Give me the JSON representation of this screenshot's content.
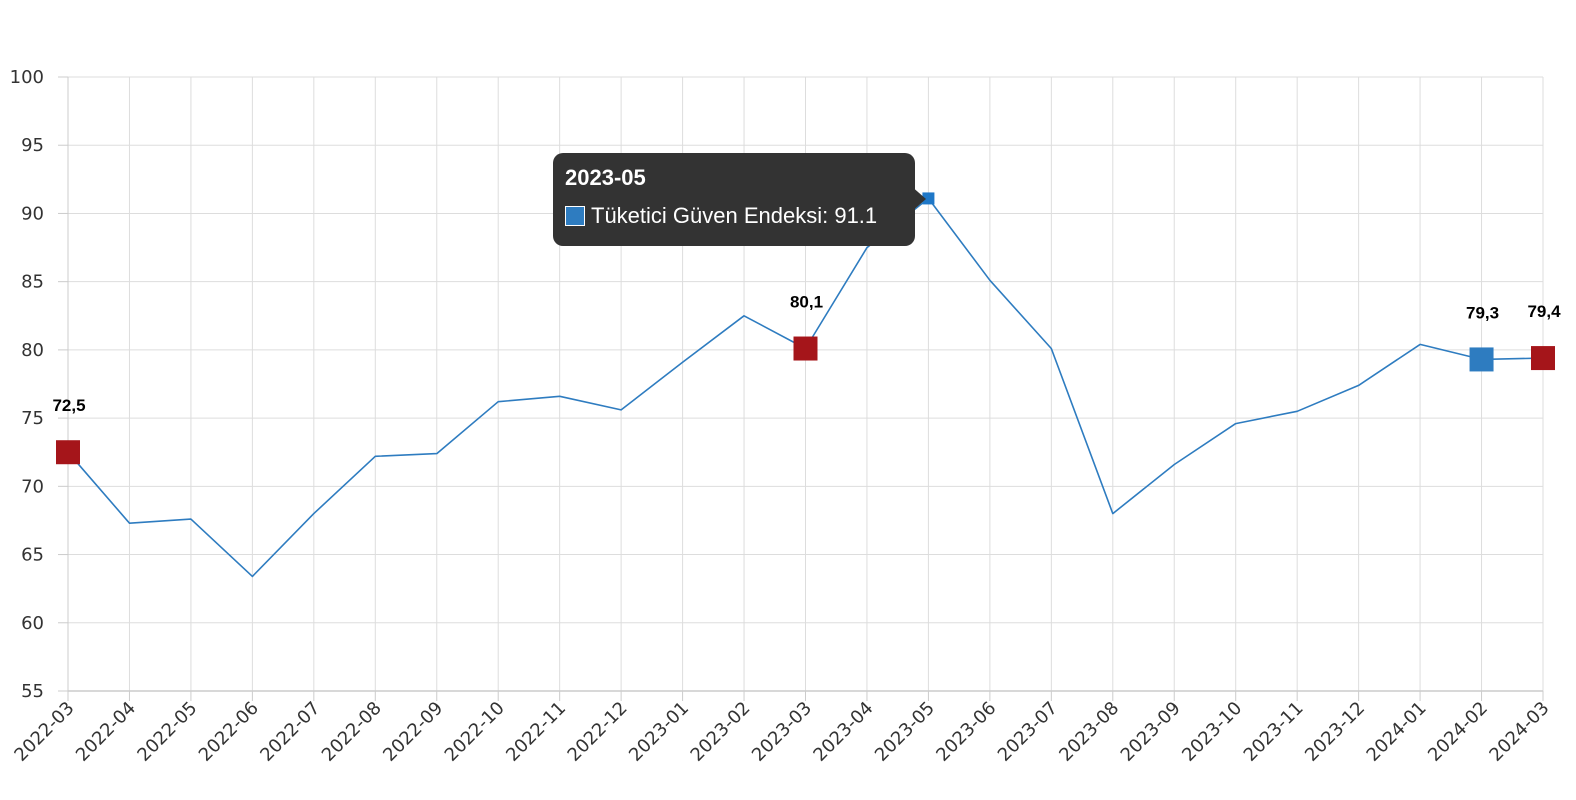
{
  "chart_data": {
    "type": "line",
    "title": "",
    "xlabel": "",
    "ylabel": "",
    "ylim": [
      55,
      100
    ],
    "yticks": [
      55,
      60,
      65,
      70,
      75,
      80,
      85,
      90,
      95,
      100
    ],
    "grid": true,
    "categories": [
      "2022-03",
      "2022-04",
      "2022-05",
      "2022-06",
      "2022-07",
      "2022-08",
      "2022-09",
      "2022-10",
      "2022-11",
      "2022-12",
      "2023-01",
      "2023-02",
      "2023-03",
      "2023-04",
      "2023-05",
      "2023-06",
      "2023-07",
      "2023-08",
      "2023-09",
      "2023-10",
      "2023-11",
      "2023-12",
      "2024-01",
      "2024-02",
      "2024-03"
    ],
    "series": [
      {
        "name": "Tüketici Güven Endeksi",
        "color": "#2e7cc0",
        "values": [
          72.5,
          67.3,
          67.6,
          63.4,
          68.0,
          72.2,
          72.4,
          76.2,
          76.6,
          75.6,
          79.1,
          82.5,
          80.1,
          87.5,
          91.1,
          85.1,
          80.1,
          68.0,
          71.6,
          74.6,
          75.5,
          77.4,
          80.4,
          79.3,
          79.4
        ]
      }
    ],
    "highlighted_points": [
      {
        "category": "2022-03",
        "label": "72,5",
        "color": "#a5151a"
      },
      {
        "category": "2023-03",
        "label": "80,1",
        "color": "#a5151a"
      },
      {
        "category": "2024-02",
        "label": "79,3",
        "color": "#2e7cc0"
      },
      {
        "category": "2024-03",
        "label": "79,4",
        "color": "#a5151a"
      }
    ],
    "tooltip": {
      "title": "2023-05",
      "series_name": "Tüketici Güven Endeksi",
      "value": "91.1",
      "text": "Tüketici Güven Endeksi: 91.1",
      "hover_category": "2023-05"
    }
  }
}
